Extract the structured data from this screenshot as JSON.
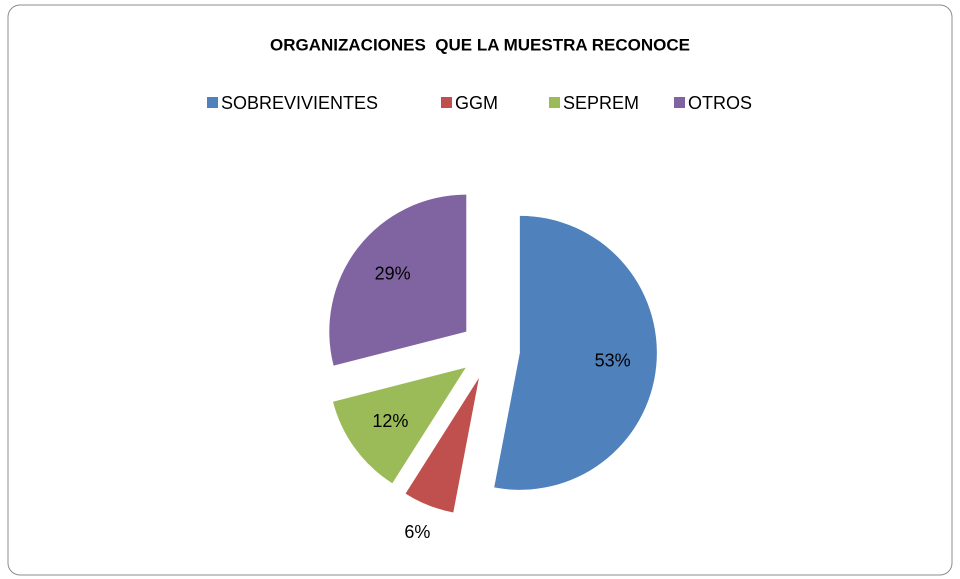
{
  "chart_data": {
    "type": "pie",
    "title": "ORGANIZACIONES  QUE LA MUESTRA RECONOCE",
    "categories": [
      "SOBREVIVIENTES",
      "GGM",
      "SEPREM",
      "OTROS"
    ],
    "values": [
      53,
      6,
      12,
      29
    ],
    "value_labels": [
      "53%",
      "6%",
      "12%",
      "29%"
    ],
    "colors": [
      "#4f81bd",
      "#c0504d",
      "#9bbb59",
      "#8064a2"
    ],
    "legend": "top"
  }
}
